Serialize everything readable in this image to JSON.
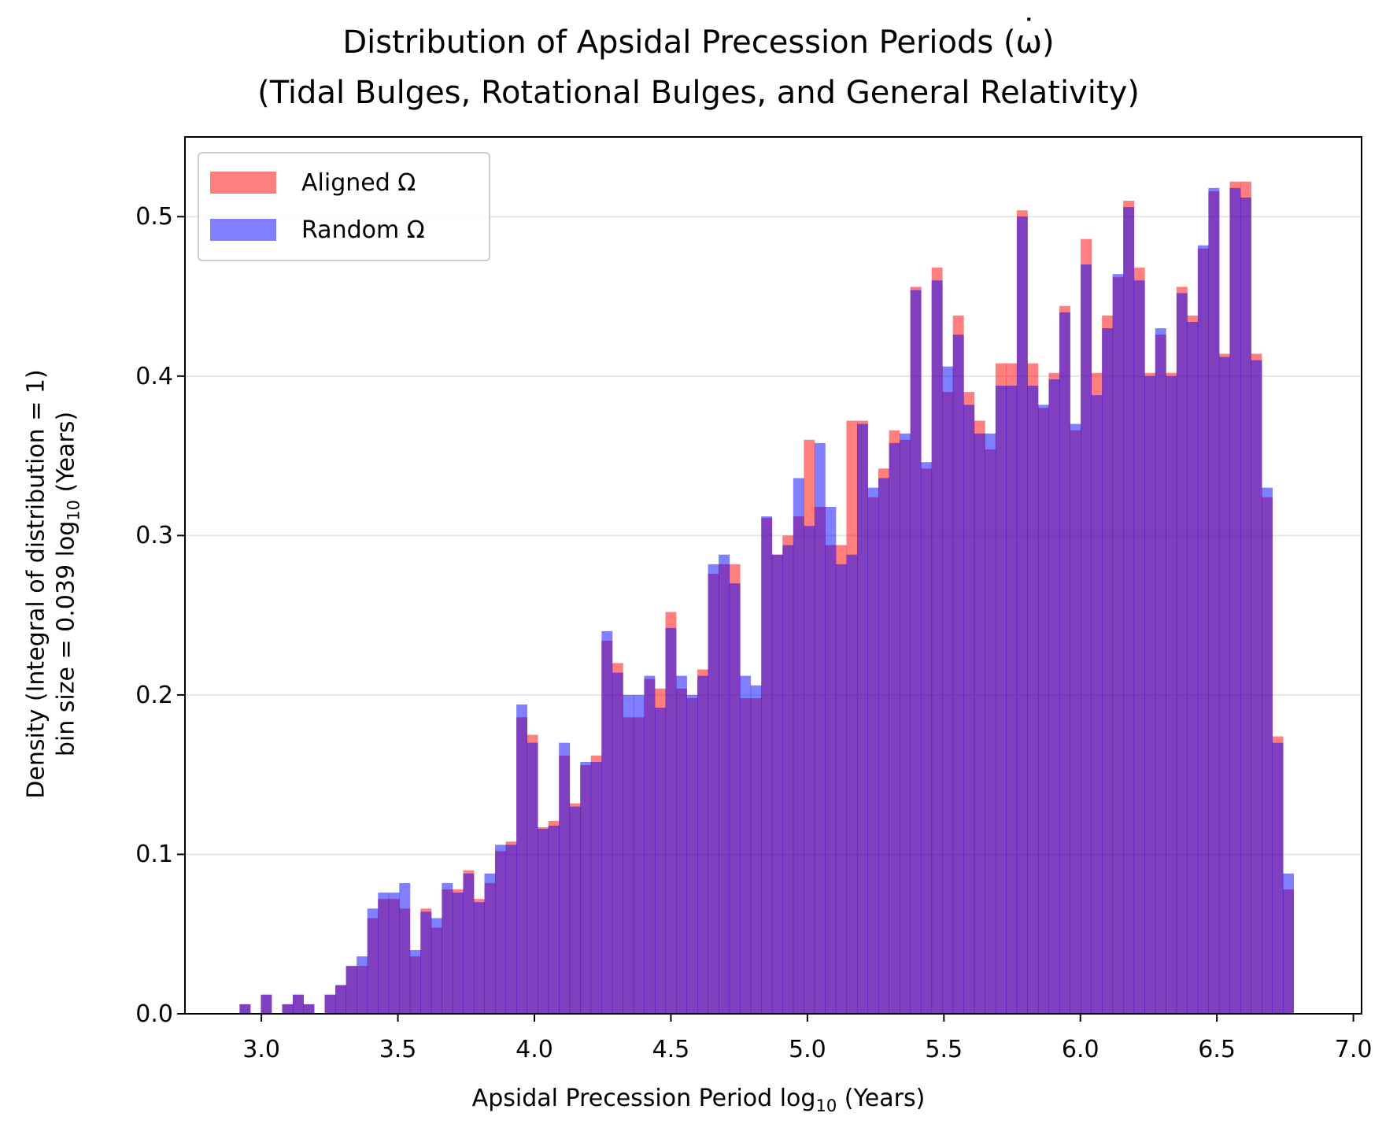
{
  "chart_data": {
    "type": "bar",
    "title_line1": "Distribution of Apsidal Precession Periods (",
    "title_symbol": "ω",
    "title_line1_end": ")",
    "title_line2": "(Tidal Bulges, Rotational Bulges, and General Relativity)",
    "xlabel_prefix": "Apsidal Precession Period log",
    "xlabel_sub": "10",
    "xlabel_suffix": "(Years)",
    "ylabel_line1": "Density (Integral of distribution = 1)",
    "ylabel_line2_prefix": "bin size = 0.039 log",
    "ylabel_line2_sub": "10",
    "ylabel_line2_suffix": "(Years)",
    "xlim": [
      2.72,
      7.03
    ],
    "ylim": [
      0,
      0.55
    ],
    "xticks": [
      "3.0",
      "3.5",
      "4.0",
      "4.5",
      "5.0",
      "5.5",
      "6.0",
      "6.5",
      "7.0"
    ],
    "yticks": [
      "0.0",
      "0.1",
      "0.2",
      "0.3",
      "0.4",
      "0.5"
    ],
    "grid": "horizontal",
    "legend_position": "top-left",
    "bin_start": 2.92,
    "bin_width": 0.039,
    "series": [
      {
        "name": "Aligned Ω",
        "legend_prefix": "Aligned ",
        "color": "#ff0000",
        "alpha": 0.5,
        "values": [
          0.006,
          0,
          0.012,
          0,
          0.006,
          0.012,
          0.006,
          0,
          0.012,
          0.018,
          0.03,
          0.03,
          0.06,
          0.072,
          0.072,
          0.066,
          0.036,
          0.066,
          0.054,
          0.078,
          0.078,
          0.09,
          0.072,
          0.082,
          0.102,
          0.108,
          0.186,
          0.175,
          0.117,
          0.121,
          0.162,
          0.132,
          0.156,
          0.162,
          0.234,
          0.22,
          0.186,
          0.186,
          0.21,
          0.204,
          0.252,
          0.204,
          0.198,
          0.216,
          0.276,
          0.282,
          0.282,
          0.198,
          0.198,
          0.311,
          0.288,
          0.3,
          0.312,
          0.36,
          0.318,
          0.294,
          0.294,
          0.372,
          0.372,
          0.324,
          0.342,
          0.366,
          0.36,
          0.456,
          0.342,
          0.468,
          0.39,
          0.438,
          0.39,
          0.372,
          0.354,
          0.408,
          0.408,
          0.504,
          0.408,
          0.38,
          0.402,
          0.444,
          0.366,
          0.486,
          0.402,
          0.438,
          0.462,
          0.51,
          0.468,
          0.402,
          0.426,
          0.402,
          0.456,
          0.438,
          0.48,
          0.516,
          0.414,
          0.522,
          0.522,
          0.414,
          0.324,
          0.174,
          0.078
        ]
      },
      {
        "name": "Random Ω",
        "legend_prefix": "Random ",
        "color": "#0000ff",
        "alpha": 0.5,
        "values": [
          0.006,
          0,
          0.012,
          0,
          0.006,
          0.012,
          0.006,
          0,
          0.012,
          0.018,
          0.03,
          0.036,
          0.066,
          0.076,
          0.076,
          0.082,
          0.04,
          0.064,
          0.06,
          0.082,
          0.076,
          0.088,
          0.07,
          0.088,
          0.106,
          0.106,
          0.194,
          0.17,
          0.116,
          0.118,
          0.17,
          0.13,
          0.158,
          0.158,
          0.24,
          0.214,
          0.2,
          0.2,
          0.212,
          0.192,
          0.242,
          0.212,
          0.2,
          0.212,
          0.282,
          0.288,
          0.27,
          0.212,
          0.206,
          0.312,
          0.288,
          0.294,
          0.336,
          0.306,
          0.358,
          0.318,
          0.282,
          0.288,
          0.37,
          0.33,
          0.336,
          0.358,
          0.364,
          0.454,
          0.346,
          0.46,
          0.406,
          0.426,
          0.382,
          0.364,
          0.364,
          0.394,
          0.394,
          0.5,
          0.394,
          0.382,
          0.398,
          0.44,
          0.37,
          0.47,
          0.388,
          0.43,
          0.464,
          0.506,
          0.46,
          0.4,
          0.43,
          0.4,
          0.452,
          0.434,
          0.482,
          0.518,
          0.412,
          0.518,
          0.512,
          0.41,
          0.33,
          0.17,
          0.088
        ]
      }
    ]
  }
}
